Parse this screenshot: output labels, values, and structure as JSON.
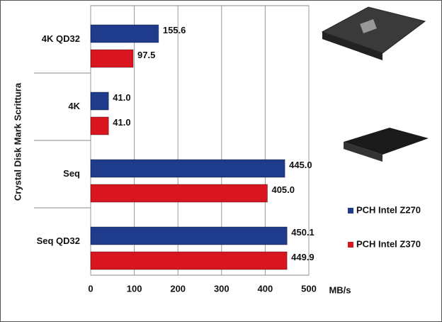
{
  "chart_data": {
    "type": "bar",
    "orientation": "horizontal",
    "y_label": "Crystal Disk Mark Scrittura",
    "x_label": "MB/s",
    "categories": [
      "4K QD32",
      "4K",
      "Seq",
      "Seq QD32"
    ],
    "series": [
      {
        "name": "PCH Intel Z270",
        "color": "#1f3b8c",
        "values": [
          155.6,
          41.0,
          445.0,
          450.1
        ],
        "value_labels": [
          "155.6",
          "41.0",
          "445.0",
          "450.1"
        ]
      },
      {
        "name": "PCH Intel Z370",
        "color": "#d9161f",
        "values": [
          97.5,
          41.0,
          405.0,
          449.9
        ],
        "value_labels": [
          "97.5",
          "41.0",
          "405.0",
          "449.9"
        ]
      }
    ],
    "xlim": [
      0,
      500
    ],
    "xticks": [
      0,
      100,
      200,
      300,
      400,
      500
    ],
    "grid": true
  }
}
